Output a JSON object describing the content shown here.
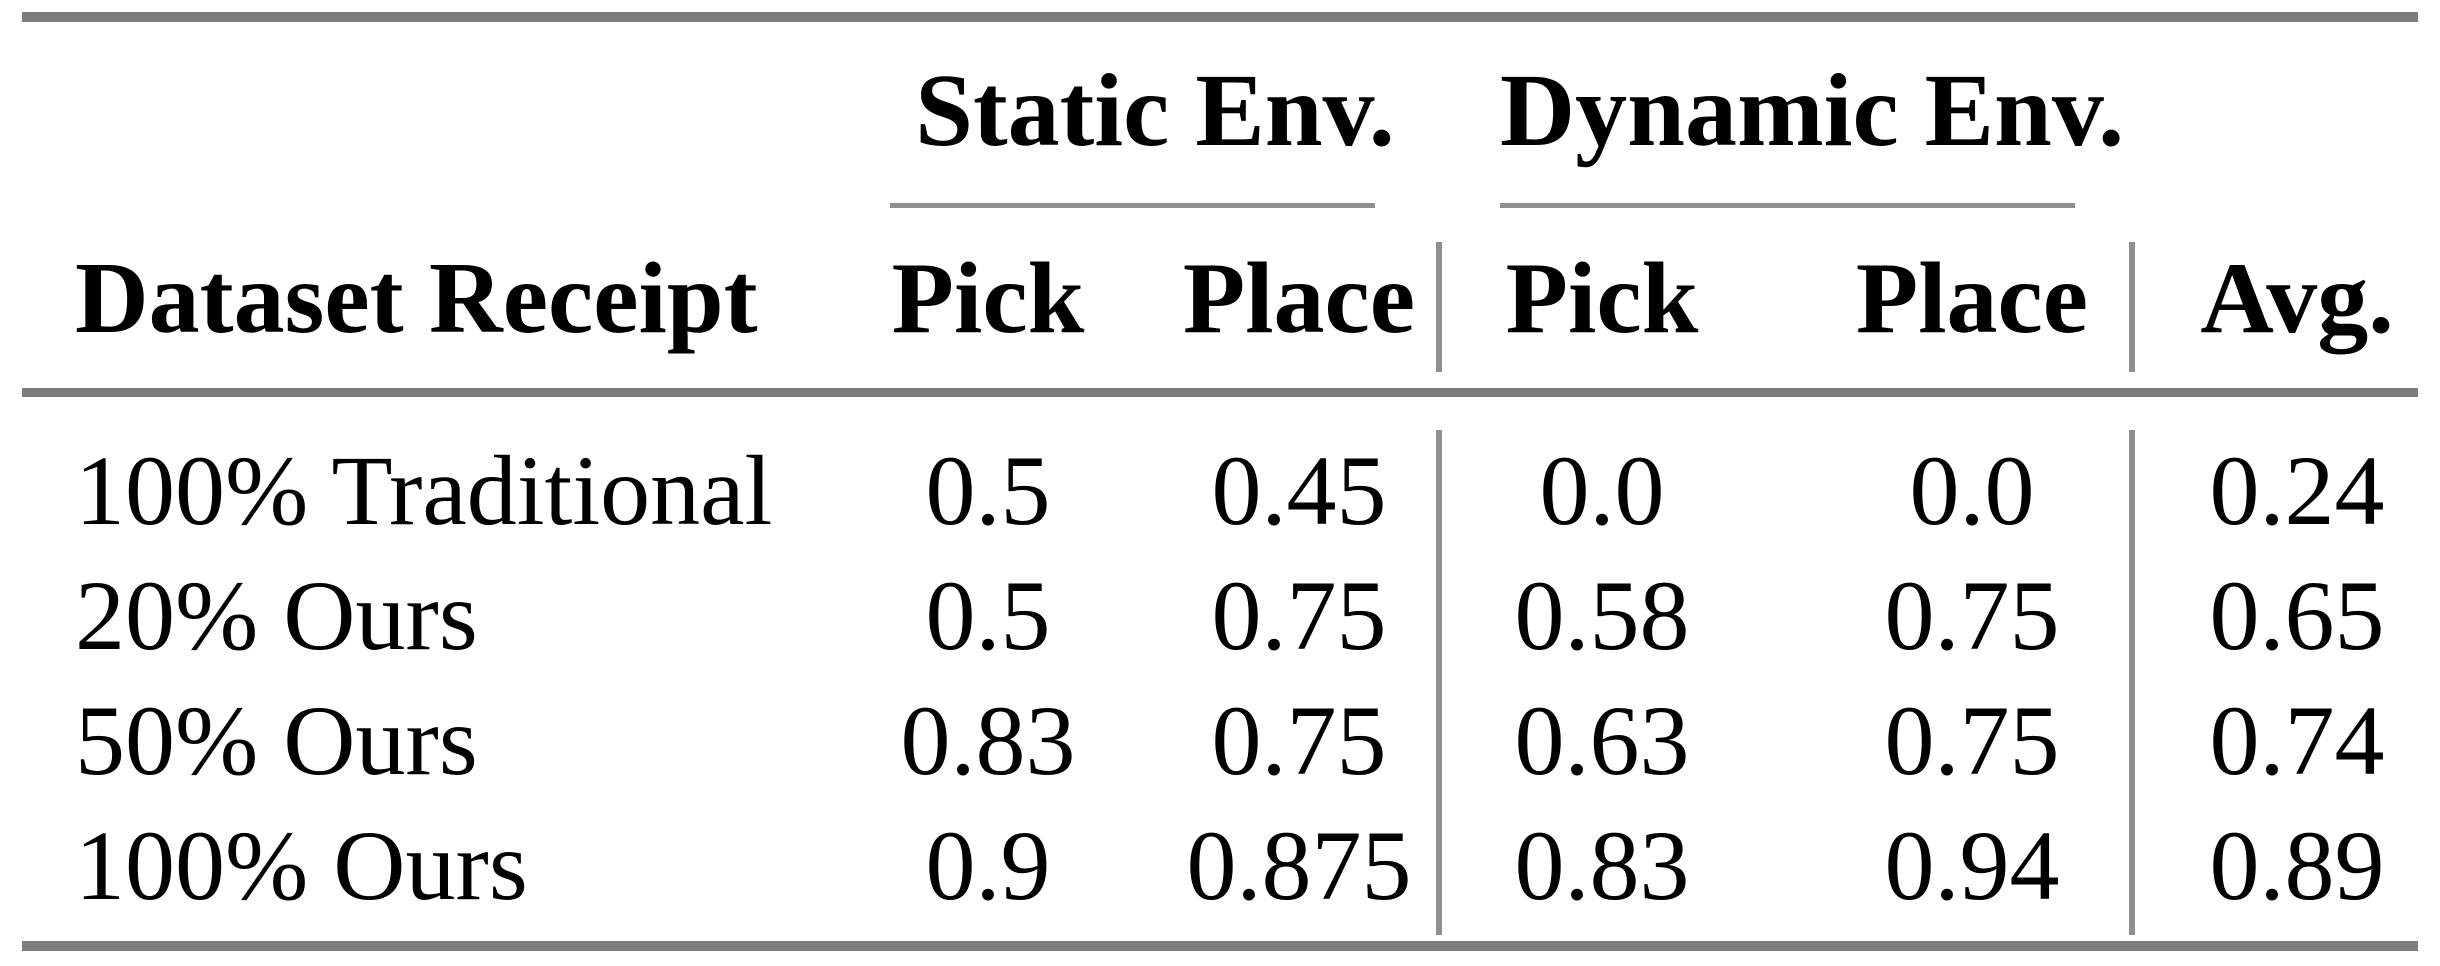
{
  "table": {
    "group_headers": {
      "static": "Static Env.",
      "dynamic": "Dynamic Env."
    },
    "column_headers": {
      "dataset": "Dataset Receipt",
      "static_pick": "Pick",
      "static_place": "Place",
      "dynamic_pick": "Pick",
      "dynamic_place": "Place",
      "avg": "Avg."
    },
    "rows": [
      {
        "dataset": "100% Traditional",
        "static_pick": "0.5",
        "static_place": "0.45",
        "dynamic_pick": "0.0",
        "dynamic_place": "0.0",
        "avg": "0.24"
      },
      {
        "dataset": "20% Ours",
        "static_pick": "0.5",
        "static_place": "0.75",
        "dynamic_pick": "0.58",
        "dynamic_place": "0.75",
        "avg": "0.65"
      },
      {
        "dataset": "50% Ours",
        "static_pick": "0.83",
        "static_place": "0.75",
        "dynamic_pick": "0.63",
        "dynamic_place": "0.75",
        "avg": "0.74"
      },
      {
        "dataset": "100% Ours",
        "static_pick": "0.9",
        "static_place": "0.875",
        "dynamic_pick": "0.83",
        "dynamic_place": "0.94",
        "avg": "0.89"
      }
    ],
    "colors": {
      "thick_rule": "#7d7d7d",
      "thin_rule": "#8f8f8f",
      "text": "#000000",
      "background": "#ffffff"
    }
  },
  "chart_data": {
    "type": "table",
    "title": "",
    "column_groups": [
      "",
      "Static Env.",
      "Static Env.",
      "Dynamic Env.",
      "Dynamic Env.",
      ""
    ],
    "columns": [
      "Dataset Receipt",
      "Pick",
      "Place",
      "Pick",
      "Place",
      "Avg."
    ],
    "rows": [
      [
        "100% Traditional",
        0.5,
        0.45,
        0.0,
        0.0,
        0.24
      ],
      [
        "20% Ours",
        0.5,
        0.75,
        0.58,
        0.75,
        0.65
      ],
      [
        "50% Ours",
        0.83,
        0.75,
        0.63,
        0.75,
        0.74
      ],
      [
        "100% Ours",
        0.9,
        0.875,
        0.83,
        0.94,
        0.89
      ]
    ]
  }
}
